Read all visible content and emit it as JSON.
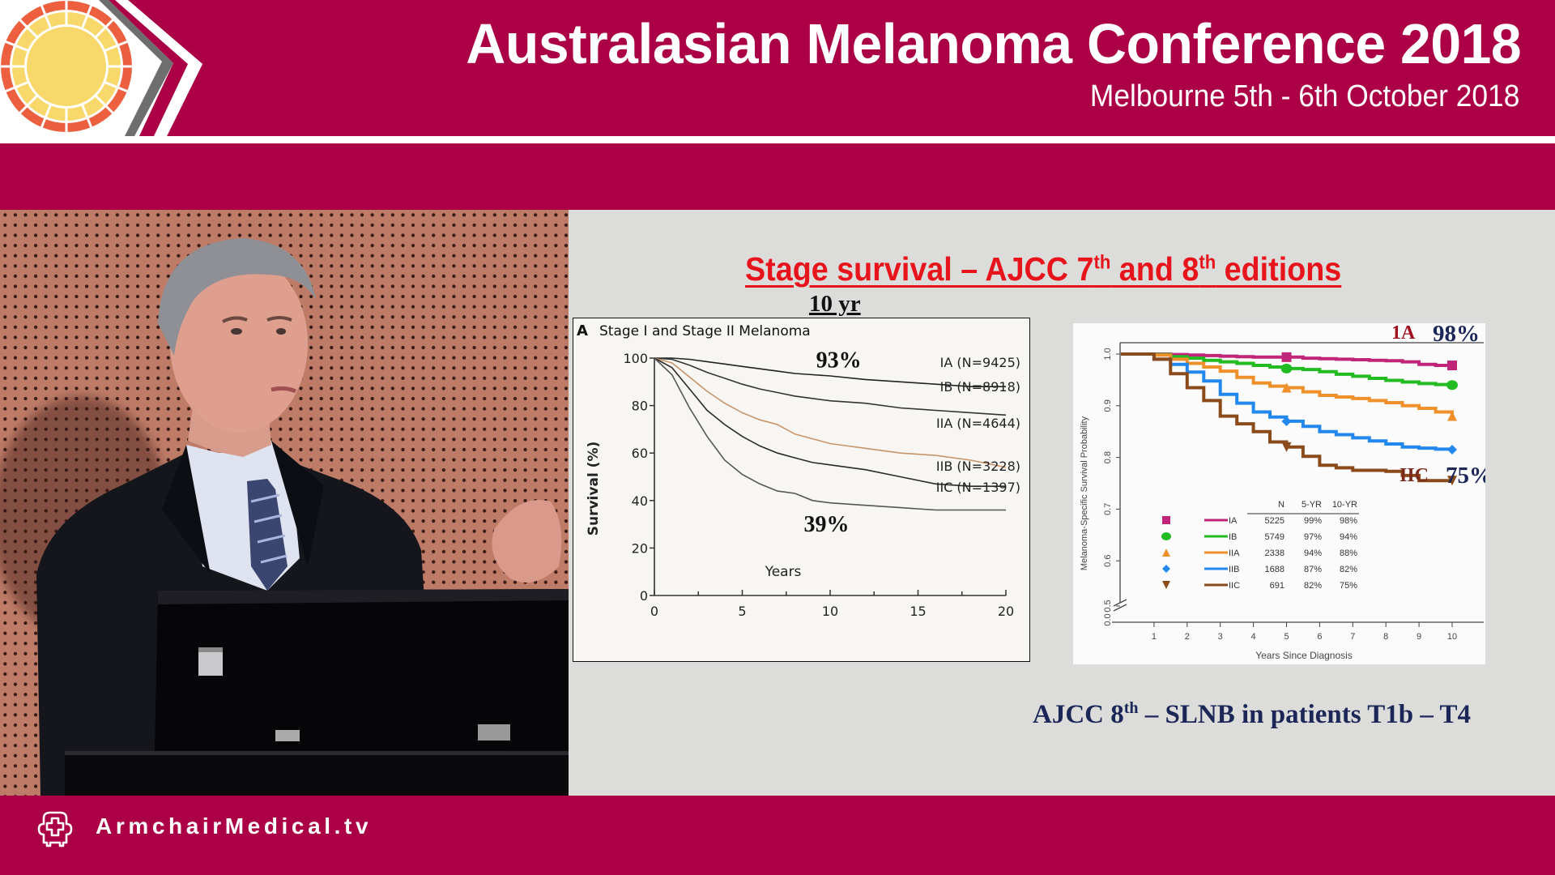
{
  "header": {
    "title": "Australasian Melanoma Conference 2018",
    "subtitle": "Melbourne 5th - 6th October 2018",
    "brand_color": "#ab0045",
    "logo": "sun-logo-icon"
  },
  "video": {
    "description": "Speaker at podium in front of perforated wooden wall"
  },
  "slide": {
    "title_parts": [
      "Stage survival – AJCC 7",
      "th",
      " and 8",
      "th",
      " editions"
    ],
    "ten_yr_label": "10 yr",
    "caption_parts": [
      "AJCC 8",
      "th",
      " – SLNB in patients T1b – T4"
    ],
    "title_color": "#e8141c",
    "caption_color": "#1c2757"
  },
  "footer": {
    "brand": "ArmchairMedical.tv",
    "logo": "armchair-cross-icon"
  },
  "chart_data": [
    {
      "type": "line",
      "panel_label": "A",
      "title": "Stage I and Stage II Melanoma",
      "xlabel": "Years",
      "ylabel": "Survival (%)",
      "xlim": [
        0,
        20
      ],
      "ylim": [
        0,
        100
      ],
      "xticks": [
        0,
        5,
        10,
        15,
        20
      ],
      "yticks": [
        0,
        20,
        40,
        60,
        80,
        100
      ],
      "grid": false,
      "annotations": [
        {
          "text": "93%",
          "x": 10,
          "y": 97
        },
        {
          "text": "39%",
          "x": 10,
          "y": 29
        }
      ],
      "x": [
        0,
        1,
        2,
        3,
        4,
        5,
        6,
        7,
        8,
        9,
        10,
        12,
        14,
        16,
        18,
        20
      ],
      "series": [
        {
          "name": "IA (N=9425)",
          "color": "#222222",
          "values": [
            100,
            100,
            99.5,
            98.5,
            97.5,
            96.5,
            95.5,
            94.5,
            93.5,
            93,
            92.5,
            91,
            90,
            89,
            88,
            88
          ]
        },
        {
          "name": "IB (N=8918)",
          "color": "#333333",
          "values": [
            100,
            99.5,
            97,
            94,
            91.5,
            89,
            87,
            85.5,
            84,
            83,
            82,
            81,
            79,
            78,
            77,
            76
          ]
        },
        {
          "name": "IIA (N=4644)",
          "color": "#c8956a",
          "values": [
            100,
            98,
            92,
            86,
            81,
            77,
            74,
            72,
            68,
            66,
            64,
            62,
            60,
            59,
            57,
            54
          ]
        },
        {
          "name": "IIB (N=3228)",
          "color": "#2a2a2a",
          "values": [
            100,
            96,
            87,
            78,
            72,
            67,
            63,
            60,
            58,
            56,
            55,
            53,
            50,
            47,
            46,
            46
          ]
        },
        {
          "name": "IIC (N=1397)",
          "color": "#555555",
          "values": [
            100,
            93,
            79,
            67,
            57,
            51,
            47,
            44,
            43,
            40,
            39,
            38,
            37,
            36,
            36,
            36
          ]
        }
      ]
    },
    {
      "type": "line",
      "title": "",
      "xlabel": "Years Since Diagnosis",
      "ylabel": "Melanoma-Specific Survival Probability",
      "xlim": [
        0,
        10
      ],
      "ylim": [
        0.5,
        1.0
      ],
      "y_axis_break": true,
      "xticks": [
        1,
        2,
        3,
        4,
        5,
        6,
        7,
        8,
        9,
        10
      ],
      "yticks": [
        "0.0",
        "0.5",
        "0.6",
        "0.7",
        "0.8",
        "0.9",
        "1.0"
      ],
      "grid": false,
      "annotations": [
        {
          "text": "1A",
          "color": "#a01020"
        },
        {
          "text": "98%",
          "color": "#1c2757"
        },
        {
          "text": "IIC",
          "color": "#7a2a1a"
        },
        {
          "text": "75%",
          "color": "#1c2757"
        }
      ],
      "x": [
        0,
        0.5,
        1,
        1.5,
        2,
        2.5,
        3,
        3.5,
        4,
        4.5,
        5,
        5.5,
        6,
        6.5,
        7,
        7.5,
        8,
        8.5,
        9,
        9.5,
        10
      ],
      "series": [
        {
          "name": "IA",
          "color": "#c0257a",
          "marker": "square",
          "values": [
            1.0,
            1.0,
            1.0,
            0.999,
            0.998,
            0.997,
            0.996,
            0.995,
            0.994,
            0.994,
            0.994,
            0.992,
            0.991,
            0.99,
            0.989,
            0.988,
            0.987,
            0.985,
            0.98,
            0.978,
            0.978
          ]
        },
        {
          "name": "IB",
          "color": "#22bb22",
          "marker": "circle",
          "values": [
            1.0,
            1.0,
            0.999,
            0.995,
            0.992,
            0.988,
            0.985,
            0.982,
            0.978,
            0.975,
            0.972,
            0.97,
            0.966,
            0.961,
            0.957,
            0.953,
            0.949,
            0.946,
            0.943,
            0.941,
            0.94
          ]
        },
        {
          "name": "IIA",
          "color": "#f0902a",
          "marker": "triangle-up",
          "values": [
            1.0,
            1.0,
            0.998,
            0.99,
            0.982,
            0.975,
            0.967,
            0.955,
            0.944,
            0.938,
            0.935,
            0.927,
            0.92,
            0.917,
            0.914,
            0.91,
            0.906,
            0.9,
            0.895,
            0.888,
            0.88
          ]
        },
        {
          "name": "IIB",
          "color": "#2288ee",
          "marker": "diamond",
          "values": [
            1.0,
            1.0,
            0.99,
            0.98,
            0.965,
            0.948,
            0.922,
            0.905,
            0.888,
            0.878,
            0.87,
            0.86,
            0.85,
            0.844,
            0.838,
            0.832,
            0.826,
            0.82,
            0.818,
            0.816,
            0.815
          ]
        },
        {
          "name": "IIC",
          "color": "#8a4a1a",
          "marker": "triangle-down",
          "values": [
            1.0,
            1.0,
            0.99,
            0.962,
            0.935,
            0.91,
            0.88,
            0.865,
            0.85,
            0.83,
            0.82,
            0.802,
            0.785,
            0.78,
            0.775,
            0.775,
            0.773,
            0.765,
            0.755,
            0.755,
            0.755
          ]
        }
      ],
      "legend_table": {
        "headers": [
          "N",
          "5-YR",
          "10-YR"
        ],
        "rows": [
          {
            "stage": "IA",
            "n": "5225",
            "yr5": "99%",
            "yr10": "98%"
          },
          {
            "stage": "IB",
            "n": "5749",
            "yr5": "97%",
            "yr10": "94%"
          },
          {
            "stage": "IIA",
            "n": "2338",
            "yr5": "94%",
            "yr10": "88%"
          },
          {
            "stage": "IIB",
            "n": "1688",
            "yr5": "87%",
            "yr10": "82%"
          },
          {
            "stage": "IIC",
            "n": "691",
            "yr5": "82%",
            "yr10": "75%"
          }
        ]
      }
    }
  ]
}
